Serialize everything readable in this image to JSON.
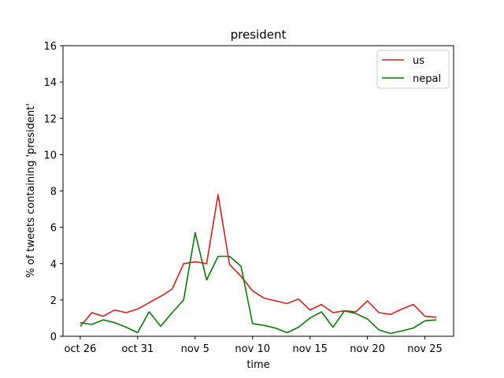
{
  "chart_data": {
    "type": "line",
    "title": "president",
    "xlabel": "time",
    "ylabel": "% of tweets containing 'president'",
    "ylim": [
      0,
      16
    ],
    "xlim": [
      -1.5,
      32.5
    ],
    "yticks": [
      0,
      2,
      4,
      6,
      8,
      10,
      12,
      14,
      16
    ],
    "xticks": [
      {
        "label": "oct 26",
        "day": 0
      },
      {
        "label": "oct 31",
        "day": 5
      },
      {
        "label": "nov 5",
        "day": 10
      },
      {
        "label": "nov 10",
        "day": 15
      },
      {
        "label": "nov 15",
        "day": 20
      },
      {
        "label": "nov 20",
        "day": 25
      },
      {
        "label": "nov 25",
        "day": 30
      }
    ],
    "grid": false,
    "legend_position": "top-right",
    "series": [
      {
        "name": "us",
        "color": "#d62020",
        "x": [
          0,
          1,
          2,
          3,
          4,
          5,
          6,
          7,
          8,
          9,
          10,
          11,
          12,
          13,
          14,
          15,
          16,
          17,
          18,
          19,
          20,
          21,
          22,
          23,
          24,
          25,
          26,
          27,
          28,
          29,
          30,
          31
        ],
        "values": [
          0.55,
          1.3,
          1.1,
          1.45,
          1.3,
          1.5,
          1.85,
          2.2,
          2.6,
          4.0,
          4.1,
          4.0,
          7.8,
          3.95,
          3.3,
          2.5,
          2.1,
          1.95,
          1.8,
          2.05,
          1.45,
          1.75,
          1.3,
          1.4,
          1.35,
          1.95,
          1.3,
          1.2,
          1.5,
          1.75,
          1.1,
          1.05
        ]
      },
      {
        "name": "nepal",
        "color": "#0a7a0a",
        "x": [
          0,
          1,
          2,
          3,
          4,
          5,
          6,
          7,
          8,
          9,
          10,
          11,
          12,
          13,
          14,
          15,
          16,
          17,
          18,
          19,
          20,
          21,
          22,
          23,
          24,
          25,
          26,
          27,
          28,
          29,
          30,
          31
        ],
        "values": [
          0.75,
          0.65,
          0.9,
          0.75,
          0.5,
          0.2,
          1.35,
          0.55,
          1.3,
          2.0,
          5.7,
          3.1,
          4.4,
          4.4,
          3.85,
          0.7,
          0.6,
          0.45,
          0.2,
          0.5,
          1.0,
          1.35,
          0.5,
          1.4,
          1.25,
          0.95,
          0.35,
          0.15,
          0.3,
          0.45,
          0.85,
          0.9
        ]
      }
    ]
  }
}
